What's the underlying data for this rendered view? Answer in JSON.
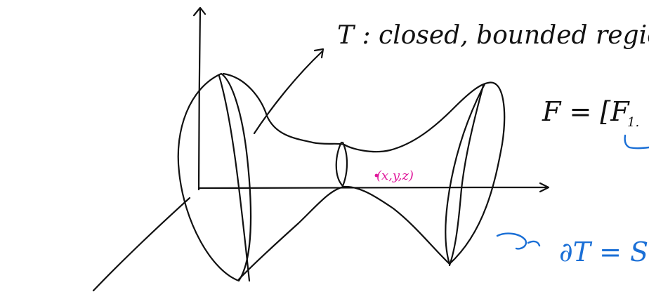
{
  "labels": {
    "region_note": "T : closed, bounded region.",
    "point_label": "(x,y,z)",
    "equation_left": "F = [F",
    "equation_sub": "1.",
    "boundary_mark": "∂T = S"
  },
  "colors": {
    "ink": "#111111",
    "point": "#e0179b",
    "boundary": "#1a6fd6"
  }
}
